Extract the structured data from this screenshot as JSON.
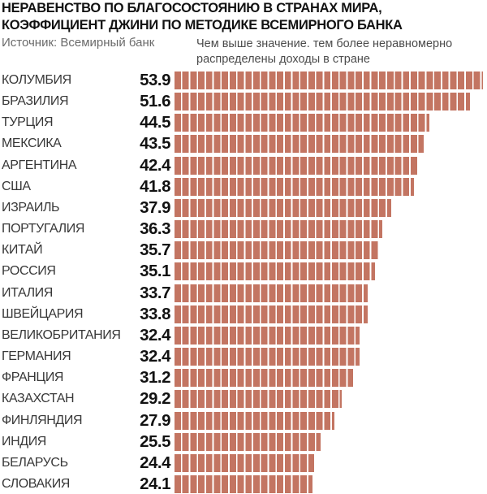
{
  "header": {
    "title_lines": [
      "НЕРАВЕНСТВО ПО БЛАГОСОСТОЯНИЮ В СТРАНАХ МИРА,",
      "КОЭФФИЦИЕНТ ДЖИНИ ПО МЕТОДИКЕ ВСЕМИРНОГО БАНКА"
    ],
    "source": "Источник: Всемирный банк",
    "note_lines": [
      "Чем выше значение. тем более неравномерно",
      "распределены доходы в стране"
    ]
  },
  "chart_data": {
    "type": "bar",
    "orientation": "horizontal",
    "title": "НЕРАВЕНСТВО ПО БЛАГОСОСТОЯНИЮ В СТРАНАХ МИРА, КОЭФФИЦИЕНТ ДЖИНИ ПО МЕТОДИКЕ ВСЕМИРНОГО БАНКА",
    "source": "Источник: Всемирный банк",
    "note": "Чем выше значение. тем более неравномерно распределены доходы в стране",
    "categories": [
      "КОЛУМБИЯ",
      "БРАЗИЛИЯ",
      "ТУРЦИЯ",
      "МЕКСИКА",
      "АРГЕНТИНА",
      "США",
      "ИЗРАИЛЬ",
      "ПОРТУГАЛИЯ",
      "КИТАЙ",
      "РОССИЯ",
      "ИТАЛИЯ",
      "ШВЕЙЦАРИЯ",
      "ВЕЛИКОБРИТАНИЯ",
      "ГЕРМАНИЯ",
      "ФРАНЦИЯ",
      "КАЗАХСТАН",
      "ФИНЛЯНДИЯ",
      "ИНДИЯ",
      "БЕЛАРУСЬ",
      "СЛОВАКИЯ"
    ],
    "values": [
      53.9,
      51.6,
      44.5,
      43.5,
      42.4,
      41.8,
      37.9,
      36.3,
      35.7,
      35.1,
      33.7,
      33.8,
      32.4,
      32.4,
      31.2,
      29.2,
      27.9,
      25.5,
      24.4,
      24.1
    ],
    "xlim": [
      0,
      55
    ],
    "grid": false,
    "legend": "none",
    "bar_style": "segmented-stripes",
    "bar_color": "#c37562",
    "gap_color": "#ffffff"
  }
}
